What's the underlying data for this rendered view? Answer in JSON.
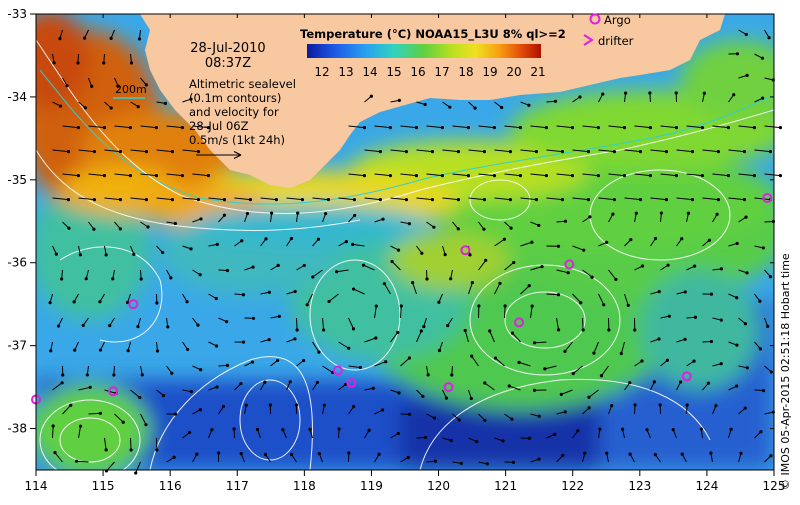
{
  "map": {
    "date": "28-Jul-2010",
    "time": "08:37Z",
    "contour_label": "200m",
    "altimetry_note": [
      "Altimetric sealevel",
      "(0.1m contours)",
      "and velocity for",
      "28-Jul 06Z"
    ],
    "velocity_scale": "0.5m/s (1kt 24h)",
    "title": "Temperature (°C) NOAA15_L3U 8% ql>=2",
    "colorbar_ticks": [
      "12",
      "13",
      "14",
      "15",
      "16",
      "17",
      "18",
      "19",
      "20",
      "21"
    ],
    "legend_argo": "Argo",
    "legend_drifter": "drifter",
    "credit": "© IMOS 05-Apr-2015 02:51:18 Hobart time",
    "x_ticks": [
      "114",
      "115",
      "116",
      "117",
      "118",
      "119",
      "120",
      "121",
      "122",
      "123",
      "124",
      "125"
    ],
    "y_ticks": [
      "-33",
      "-34",
      "-35",
      "-36",
      "-37",
      "-38"
    ],
    "colors": {
      "land": "#f8c8a0",
      "argo": "#e020e0",
      "contour": "#ffffff",
      "shelf": "#30d0d0"
    }
  },
  "argo_floats": [
    {
      "lon": 114.0,
      "lat": -37.65
    },
    {
      "lon": 115.15,
      "lat": -37.55
    },
    {
      "lon": 115.45,
      "lat": -36.5
    },
    {
      "lon": 118.5,
      "lat": -37.3
    },
    {
      "lon": 118.7,
      "lat": -37.45
    },
    {
      "lon": 120.15,
      "lat": -37.5
    },
    {
      "lon": 120.4,
      "lat": -35.85
    },
    {
      "lon": 121.2,
      "lat": -36.72
    },
    {
      "lon": 121.95,
      "lat": -36.02
    },
    {
      "lon": 123.7,
      "lat": -37.37
    },
    {
      "lon": 124.9,
      "lat": -35.22
    }
  ]
}
